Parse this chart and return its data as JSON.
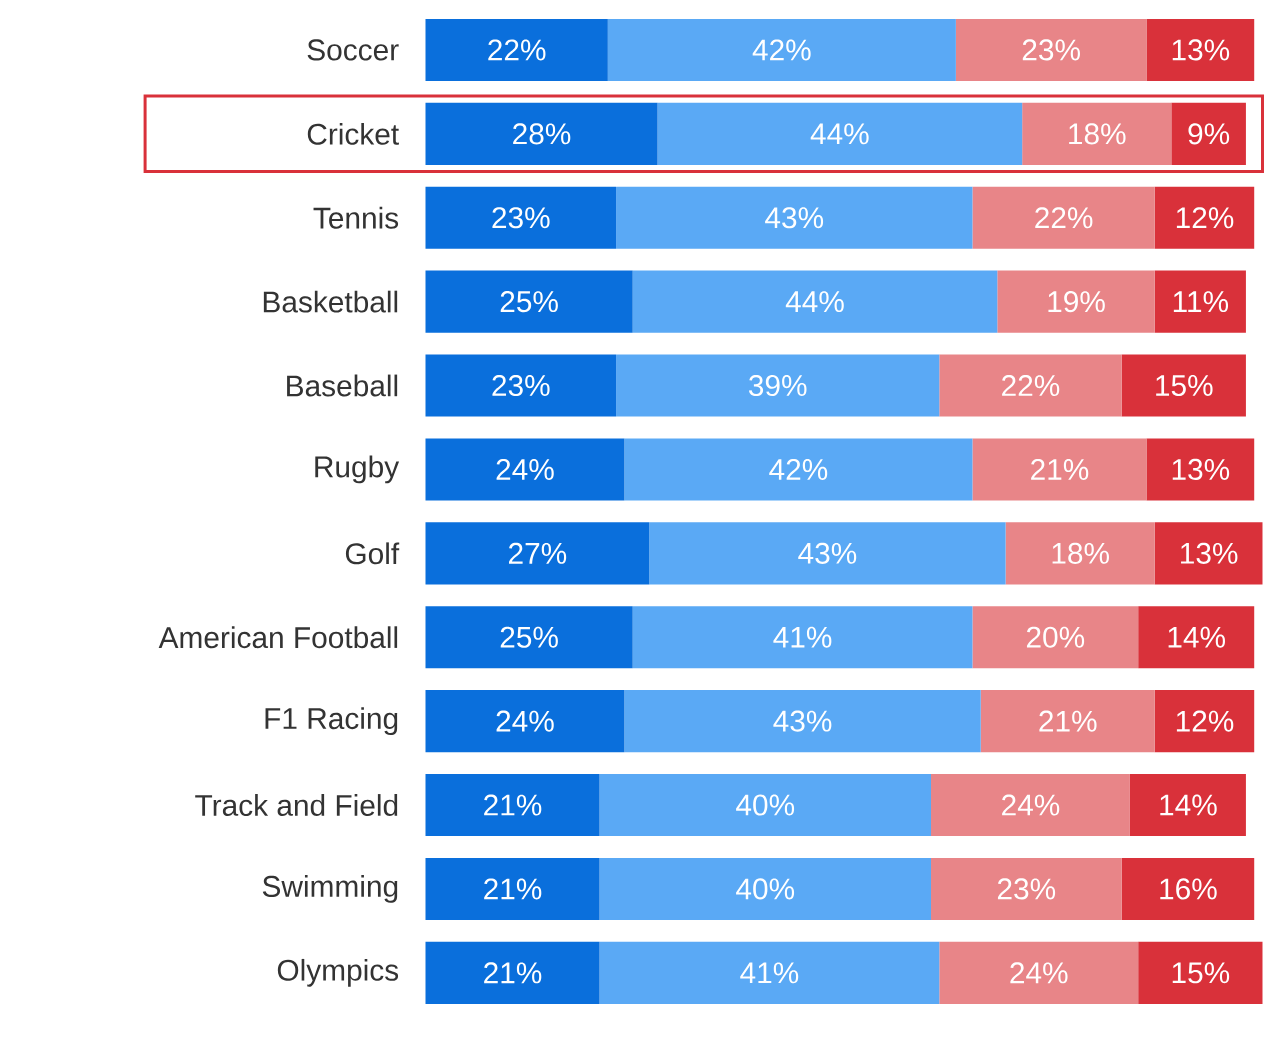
{
  "chart_data": {
    "type": "bar",
    "orientation": "horizontal",
    "stacked": true,
    "data_labels": true,
    "categories": [
      "Soccer",
      "Cricket",
      "Tennis",
      "Basketball",
      "Baseball",
      "Rugby",
      "Golf",
      "American Football",
      "F1 Racing",
      "Track and Field",
      "Swimming",
      "Olympics"
    ],
    "series": [
      {
        "color": "#0a6fdc",
        "values": [
          22,
          28,
          23,
          25,
          23,
          24,
          27,
          25,
          24,
          21,
          21,
          21
        ],
        "value_labels": [
          "22%",
          "28%",
          "23%",
          "25%",
          "23%",
          "24%",
          "27%",
          "25%",
          "24%",
          "21%",
          "21%",
          "21%"
        ]
      },
      {
        "color": "#5aa9f5",
        "values": [
          42,
          44,
          43,
          44,
          39,
          42,
          43,
          41,
          43,
          40,
          40,
          41
        ],
        "value_labels": [
          "42%",
          "44%",
          "43%",
          "44%",
          "39%",
          "42%",
          "43%",
          "41%",
          "43%",
          "40%",
          "40%",
          "41%"
        ]
      },
      {
        "color": "#e88588",
        "values": [
          23,
          18,
          22,
          19,
          22,
          21,
          18,
          20,
          21,
          24,
          23,
          24
        ],
        "value_labels": [
          "23%",
          "18%",
          "22%",
          "19%",
          "22%",
          "21%",
          "18%",
          "20%",
          "21%",
          "24%",
          "23%",
          "24%"
        ]
      },
      {
        "color": "#d9313a",
        "values": [
          13,
          9,
          12,
          11,
          15,
          13,
          13,
          14,
          12,
          14,
          16,
          15
        ],
        "value_labels": [
          "13%",
          "9%",
          "12%",
          "11%",
          "15%",
          "13%",
          "13%",
          "14%",
          "12%",
          "14%",
          "16%",
          "15%"
        ]
      }
    ]
  }
}
